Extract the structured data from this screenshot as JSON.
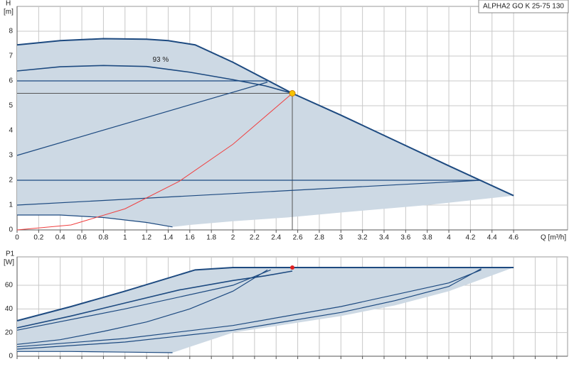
{
  "chart_data": [
    {
      "type": "line",
      "title": "ALPHA2 GO K 25-75 130",
      "xlabel": "Q [m³/h]",
      "ylabel": "H",
      "yunit": "[m]",
      "xlim": [
        0,
        5.1
      ],
      "ylim": [
        0,
        9
      ],
      "xticks": [
        0,
        0.2,
        0.4,
        0.6,
        0.8,
        1,
        1.2,
        1.4,
        1.6,
        1.8,
        2,
        2.2,
        2.4,
        2.6,
        2.8,
        3,
        3.2,
        3.4,
        3.6,
        3.8,
        4,
        4.2,
        4.4,
        4.6
      ],
      "yticks": [
        0,
        1,
        2,
        3,
        4,
        5,
        6,
        7,
        8
      ],
      "grid": true,
      "area": {
        "color": "#cdd9e4",
        "x": [
          0,
          0.4,
          0.8,
          1.2,
          1.4,
          1.65,
          2,
          2.55,
          3,
          3.5,
          4,
          4.6,
          3.8,
          3,
          2.5,
          2,
          1.6,
          1.44,
          1.2,
          0.8,
          0.4,
          0,
          0
        ],
        "values": [
          7.45,
          7.62,
          7.7,
          7.68,
          7.62,
          7.45,
          6.75,
          5.5,
          4.62,
          3.6,
          2.58,
          1.38,
          1.0,
          0.7,
          0.5,
          0.35,
          0.2,
          0.12,
          0.3,
          0.5,
          0.6,
          0.6,
          7.45
        ]
      },
      "series": [
        {
          "color": "#1d4a80",
          "width": 2,
          "x": [
            0,
            0.4,
            0.8,
            1.2,
            1.4,
            1.65,
            2,
            2.55,
            3,
            3.5,
            4,
            4.6
          ],
          "values": [
            7.45,
            7.62,
            7.7,
            7.68,
            7.62,
            7.45,
            6.75,
            5.5,
            4.62,
            3.6,
            2.58,
            1.38
          ]
        },
        {
          "color": "#1d4a80",
          "width": 1.6,
          "x": [
            0,
            0.4,
            0.8,
            1.2,
            1.6,
            2,
            2.3,
            2.55
          ],
          "values": [
            6.4,
            6.57,
            6.62,
            6.58,
            6.35,
            6.05,
            5.8,
            5.5
          ]
        },
        {
          "color": "#1d4a80",
          "width": 1.2,
          "x": [
            0,
            2.32
          ],
          "values": [
            6,
            6
          ]
        },
        {
          "color": "#1d4a80",
          "width": 1.2,
          "x": [
            0,
            2.32
          ],
          "values": [
            3,
            5.95
          ]
        },
        {
          "color": "#1d4a80",
          "width": 1.2,
          "x": [
            0,
            4.3
          ],
          "values": [
            2,
            2
          ]
        },
        {
          "color": "#1d4a80",
          "width": 1.2,
          "x": [
            0,
            4.3
          ],
          "values": [
            1,
            2
          ]
        },
        {
          "color": "#1d4a80",
          "width": 1.2,
          "x": [
            0,
            0.4,
            0.8,
            1.2,
            1.44
          ],
          "values": [
            0.6,
            0.6,
            0.5,
            0.3,
            0.12
          ]
        },
        {
          "color": "#f04040",
          "width": 1,
          "x": [
            0,
            0.5,
            1,
            1.5,
            2,
            2.55
          ],
          "values": [
            0,
            0.2,
            0.85,
            1.95,
            3.45,
            5.5
          ]
        }
      ],
      "points": [
        {
          "x": 2.55,
          "y": 5.5,
          "color": "#f5c400"
        }
      ],
      "annotations": [
        {
          "text": "93 %",
          "x": 1.33,
          "y": 6.85
        }
      ]
    },
    {
      "type": "line",
      "ylabel": "P1",
      "yunit": "[W]",
      "xlim": [
        0,
        5.1
      ],
      "ylim": [
        0,
        84
      ],
      "xticks": [
        0,
        0.2,
        0.4,
        0.6,
        0.8,
        1,
        1.2,
        1.4,
        1.6,
        1.8,
        2,
        2.2,
        2.4,
        2.6,
        2.8,
        3,
        3.2,
        3.4,
        3.6,
        3.8,
        4,
        4.2,
        4.4,
        4.6,
        4.8,
        5
      ],
      "yticks": [
        0,
        20,
        40,
        60
      ],
      "grid": true,
      "area": {
        "color": "#cdd9e4",
        "x": [
          0,
          0.5,
          1,
          1.65,
          2,
          4.6,
          4,
          3.5,
          3,
          2.5,
          2,
          1.44,
          1,
          0.5,
          0,
          0
        ],
        "values": [
          30,
          42,
          55,
          73,
          75,
          75,
          55,
          43,
          34,
          27,
          20,
          3,
          3.5,
          4,
          4,
          30
        ]
      },
      "series": [
        {
          "color": "#1d4a80",
          "width": 2,
          "x": [
            0,
            0.5,
            1,
            1.65,
            2,
            4.6
          ],
          "values": [
            30,
            42,
            55,
            73,
            75,
            75
          ]
        },
        {
          "color": "#1d4a80",
          "width": 1.6,
          "x": [
            0,
            0.5,
            1,
            1.5,
            2,
            2.3,
            2.55
          ],
          "values": [
            24,
            34,
            45,
            56,
            64,
            68,
            72
          ]
        },
        {
          "color": "#1d4a80",
          "width": 1.2,
          "x": [
            0,
            1,
            2,
            2.35
          ],
          "values": [
            22,
            40,
            60,
            73
          ]
        },
        {
          "color": "#1d4a80",
          "width": 1.2,
          "x": [
            0,
            0.4,
            0.8,
            1.2,
            1.6,
            2,
            2.32
          ],
          "values": [
            10,
            14,
            21,
            29,
            40,
            55,
            73
          ]
        },
        {
          "color": "#1d4a80",
          "width": 1.2,
          "x": [
            0,
            1,
            2,
            3,
            3.5,
            4,
            4.3
          ],
          "values": [
            6,
            12,
            22,
            37,
            47,
            59,
            74
          ]
        },
        {
          "color": "#1d4a80",
          "width": 1.2,
          "x": [
            0,
            1,
            2,
            3,
            4,
            4.3
          ],
          "values": [
            8,
            15,
            26,
            42,
            62,
            73
          ]
        },
        {
          "color": "#1d4a80",
          "width": 1.2,
          "x": [
            0,
            0.5,
            1,
            1.44
          ],
          "values": [
            4,
            4,
            3.5,
            3
          ]
        }
      ],
      "points": [
        {
          "x": 2.55,
          "y": 75,
          "color": "#e02020"
        }
      ]
    }
  ]
}
